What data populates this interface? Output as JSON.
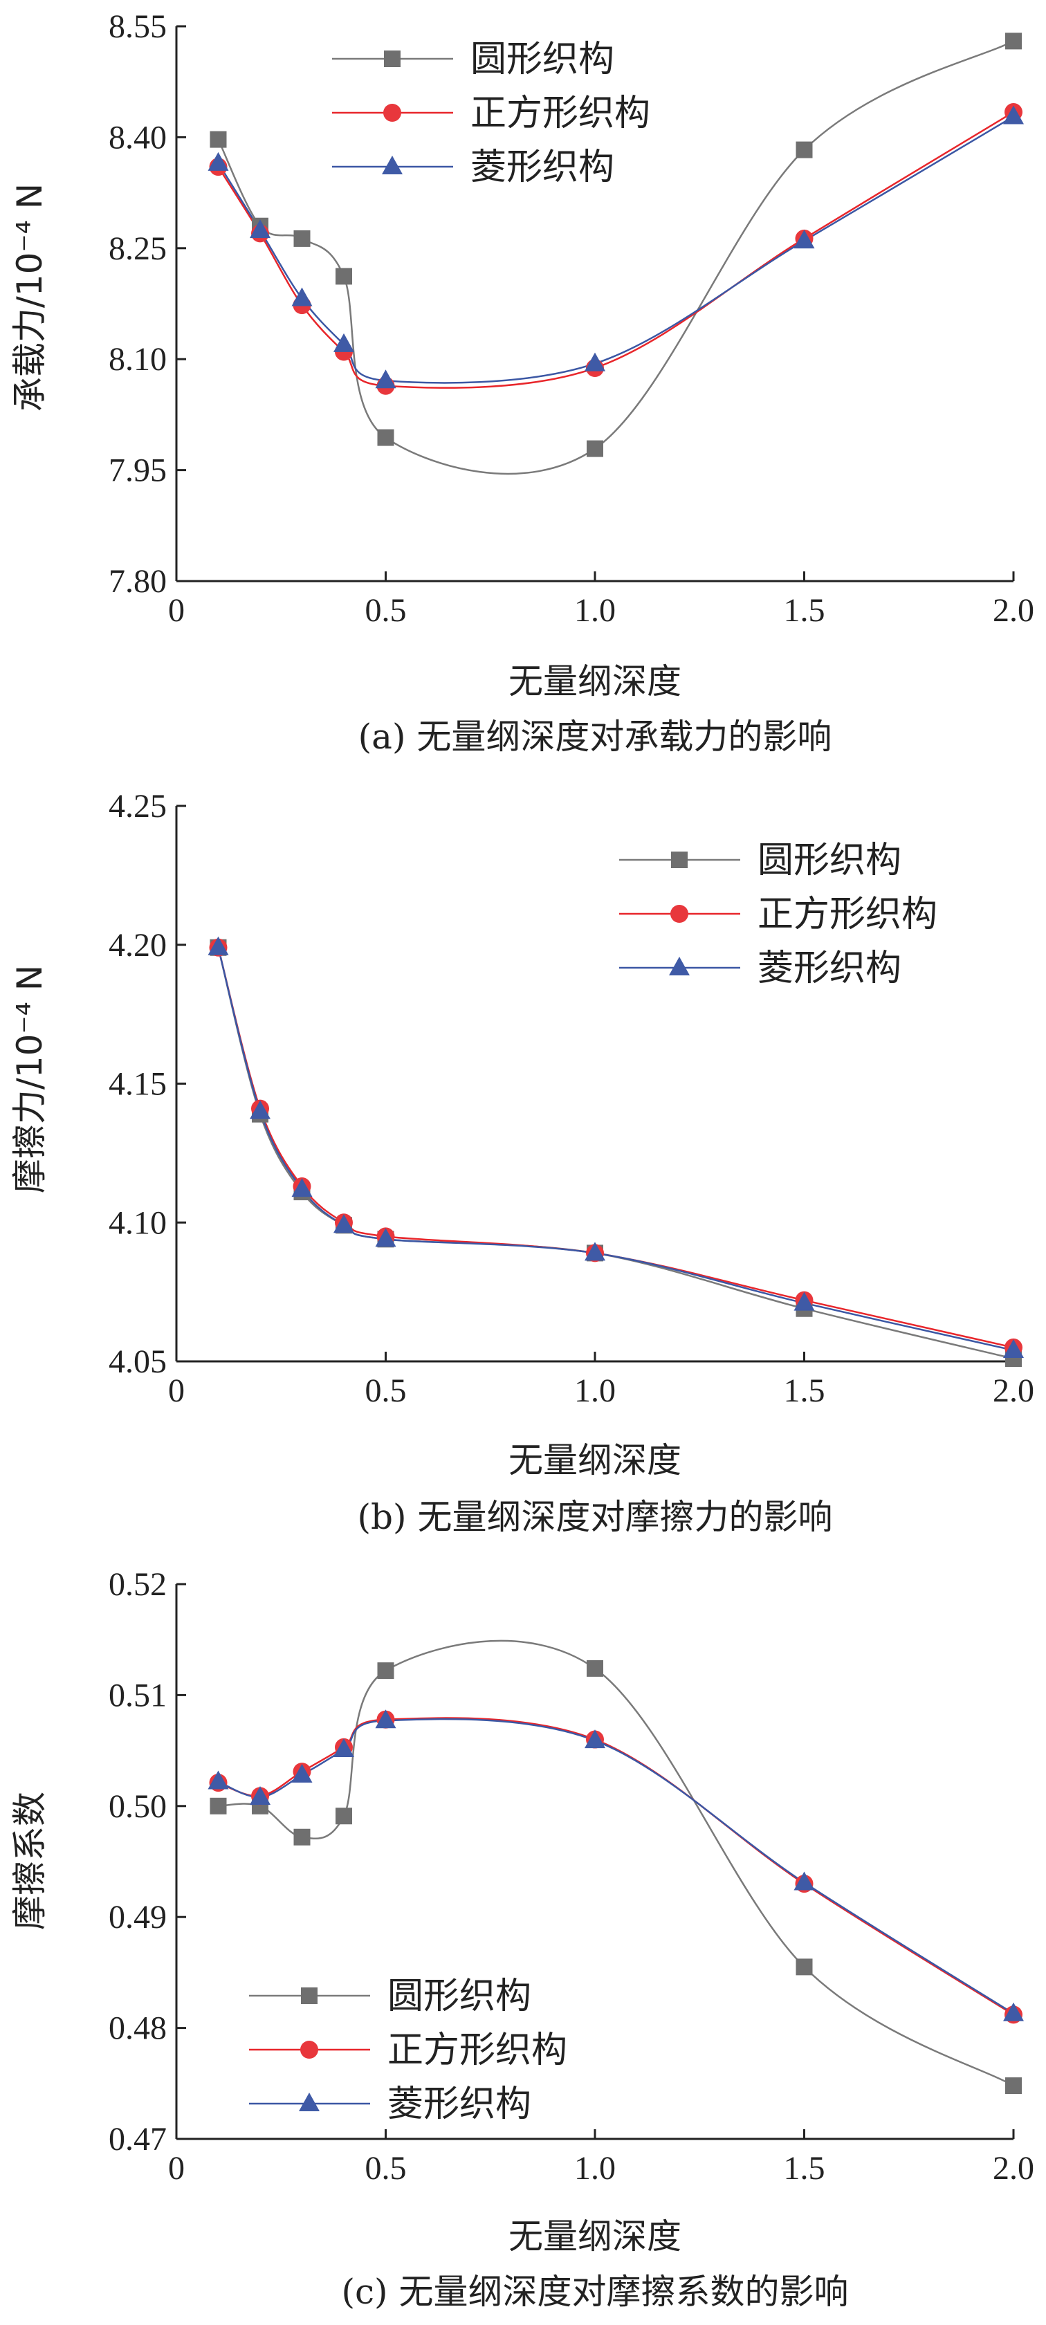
{
  "colors": {
    "circle": "#7a7a7a",
    "square": "#e8262b",
    "diamond": "#3b57a4",
    "circle_marker": "#6f6f6f",
    "square_marker": "#e8373c",
    "diamond_marker": "#3f5aa6",
    "axis": "#222222"
  },
  "chart_data": [
    {
      "type": "line",
      "caption": "(a)  无量纲深度对承载力的影响",
      "xlabel": "无量纲深度",
      "ylabel": "承载力/10⁻⁴ N",
      "xlim": [
        0,
        2.0
      ],
      "ylim": [
        7.8,
        8.55
      ],
      "xticks": [
        "0",
        "0.5",
        "1.0",
        "1.5",
        "2.0"
      ],
      "yticks": [
        "7.80",
        "7.95",
        "8.10",
        "8.25",
        "8.40",
        "8.55"
      ],
      "legend_position": "top-center",
      "x": [
        0.1,
        0.2,
        0.3,
        0.4,
        0.5,
        1.0,
        1.5,
        2.0
      ],
      "series": [
        {
          "name": "圆形织构",
          "marker": "square",
          "values": [
            8.397,
            8.28,
            8.263,
            8.212,
            7.994,
            7.979,
            8.383,
            8.53
          ]
        },
        {
          "name": "正方形织构",
          "marker": "circle",
          "values": [
            8.36,
            8.27,
            8.173,
            8.11,
            8.064,
            8.088,
            8.263,
            8.434
          ]
        },
        {
          "name": "菱形织构",
          "marker": "triangle",
          "values": [
            8.365,
            8.274,
            8.182,
            8.12,
            8.071,
            8.094,
            8.26,
            8.428
          ]
        }
      ]
    },
    {
      "type": "line",
      "caption": "(b)  无量纲深度对摩擦力的影响",
      "xlabel": "无量纲深度",
      "ylabel": "摩擦力/10⁻⁴ N",
      "xlim": [
        0,
        2.0
      ],
      "ylim": [
        4.05,
        4.25
      ],
      "xticks": [
        "0",
        "0.5",
        "1.0",
        "1.5",
        "2.0"
      ],
      "yticks": [
        "4.05",
        "4.10",
        "4.15",
        "4.20",
        "4.25"
      ],
      "legend_position": "top-right",
      "x": [
        0.1,
        0.2,
        0.3,
        0.4,
        0.5,
        1.0,
        1.5,
        2.0
      ],
      "series": [
        {
          "name": "圆形织构",
          "marker": "square",
          "values": [
            4.199,
            4.139,
            4.111,
            4.099,
            4.094,
            4.089,
            4.069,
            4.051
          ]
        },
        {
          "name": "正方形织构",
          "marker": "circle",
          "values": [
            4.199,
            4.141,
            4.113,
            4.1,
            4.095,
            4.089,
            4.072,
            4.055
          ]
        },
        {
          "name": "菱形织构",
          "marker": "triangle",
          "values": [
            4.199,
            4.14,
            4.112,
            4.099,
            4.094,
            4.089,
            4.071,
            4.054
          ]
        }
      ]
    },
    {
      "type": "line",
      "caption": "(c)  无量纲深度对摩擦系数的影响",
      "xlabel": "无量纲深度",
      "ylabel": "摩擦系数",
      "xlim": [
        0,
        2.0
      ],
      "ylim": [
        0.47,
        0.52
      ],
      "xticks": [
        "0",
        "0.5",
        "1.0",
        "1.5",
        "2.0"
      ],
      "yticks": [
        "0.47",
        "0.48",
        "0.49",
        "0.50",
        "0.51",
        "0.52"
      ],
      "legend_position": "bottom-left",
      "x": [
        0.1,
        0.2,
        0.3,
        0.4,
        0.5,
        1.0,
        1.5,
        2.0
      ],
      "series": [
        {
          "name": "圆形织构",
          "marker": "square",
          "values": [
            0.5,
            0.5,
            0.4972,
            0.4991,
            0.5122,
            0.5124,
            0.4855,
            0.4748
          ]
        },
        {
          "name": "正方形织构",
          "marker": "circle",
          "values": [
            0.5021,
            0.5009,
            0.5031,
            0.5053,
            0.5078,
            0.506,
            0.493,
            0.4812
          ]
        },
        {
          "name": "菱形织构",
          "marker": "triangle",
          "values": [
            0.5022,
            0.5008,
            0.5028,
            0.5051,
            0.5077,
            0.5059,
            0.4931,
            0.4813
          ]
        }
      ]
    }
  ]
}
